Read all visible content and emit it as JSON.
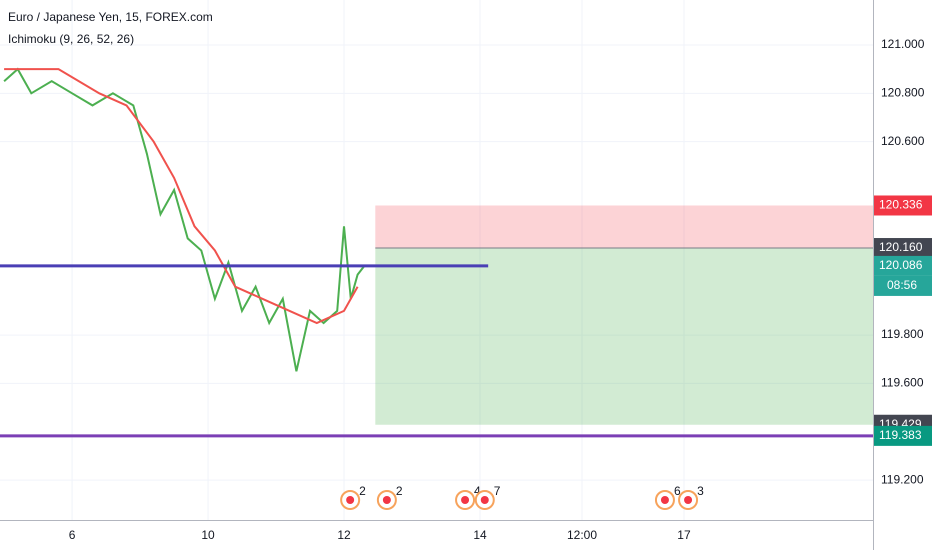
{
  "chart_data": {
    "type": "line",
    "title": "Euro / Japanese Yen, 15, FOREX.com",
    "indicator": "Ichimoku (9, 26, 52, 26)",
    "xlim": [
      -1.06,
      11.78
    ],
    "ylim": [
      119.035,
      121.186
    ],
    "xticks": [
      {
        "value": 0,
        "label": "6"
      },
      {
        "value": 2,
        "label": "10"
      },
      {
        "value": 4,
        "label": "12"
      },
      {
        "value": 6,
        "label": "14"
      },
      {
        "value": 7.5,
        "label": "12:00"
      },
      {
        "value": 9,
        "label": "17"
      }
    ],
    "yticks": [
      {
        "value": 119.2,
        "label": "119.200"
      },
      {
        "value": 119.6,
        "label": "119.600"
      },
      {
        "value": 119.8,
        "label": "119.800"
      },
      {
        "value": 120.6,
        "label": "120.600"
      },
      {
        "value": 120.8,
        "label": "120.800"
      },
      {
        "value": 121,
        "label": "121.000"
      }
    ],
    "series": [
      {
        "color": "#4caf50",
        "x": [
          -1.0,
          -0.8,
          -0.6,
          -0.3,
          0,
          0.3,
          0.6,
          0.9,
          1.1,
          1.3,
          1.5,
          1.7,
          1.9,
          2.1,
          2.3,
          2.5,
          2.7,
          2.9,
          3.1,
          3.3,
          3.5,
          3.7,
          3.9,
          4.0,
          4.1,
          4.2,
          4.3
        ],
        "values": [
          120.85,
          120.9,
          120.8,
          120.85,
          120.8,
          120.75,
          120.8,
          120.75,
          120.55,
          120.3,
          120.4,
          120.2,
          120.15,
          119.95,
          120.1,
          119.9,
          120.0,
          119.85,
          119.95,
          119.65,
          119.9,
          119.85,
          119.9,
          120.25,
          119.95,
          120.05,
          120.086
        ]
      },
      {
        "color": "#f0524d",
        "x": [
          -1.0,
          -0.2,
          0.4,
          0.8,
          1.2,
          1.5,
          1.8,
          2.1,
          2.4,
          2.8,
          3.2,
          3.6,
          4.0,
          4.2
        ],
        "values": [
          120.9,
          120.9,
          120.8,
          120.75,
          120.6,
          120.45,
          120.25,
          120.15,
          120.0,
          119.95,
          119.9,
          119.85,
          119.9,
          120.0
        ]
      }
    ],
    "horizontal_lines": [
      {
        "value": 120.086,
        "color": "#4a3fb5",
        "xlim": [
          -1.06,
          6.12
        ]
      },
      {
        "value": 119.383,
        "color": "#7b3fb5",
        "xlim": [
          -1.06,
          11.78
        ]
      }
    ],
    "position": {
      "x": 4.46,
      "entry": 120.16,
      "stop": 120.336,
      "target": 119.429
    },
    "price_labels": [
      {
        "value": 120.336,
        "label": "120.336",
        "color": "#f23645"
      },
      {
        "value": 120.16,
        "label": "120.160",
        "color": "#434651"
      },
      {
        "value": 120.086,
        "label": "120.086",
        "color": "#26a69a"
      },
      {
        "value": 119.429,
        "label": "119.429",
        "color": "#434651"
      },
      {
        "value": 119.383,
        "label": "119.383",
        "color": "#089981"
      }
    ],
    "countdown": "08:56",
    "events": [
      {
        "x": 4.09,
        "label": "2"
      },
      {
        "x": 4.63,
        "label": "2"
      },
      {
        "x": 5.78,
        "label": "4"
      },
      {
        "x": 6.07,
        "label": "7"
      },
      {
        "x": 8.72,
        "label": "6"
      },
      {
        "x": 9.06,
        "label": "3"
      }
    ]
  }
}
